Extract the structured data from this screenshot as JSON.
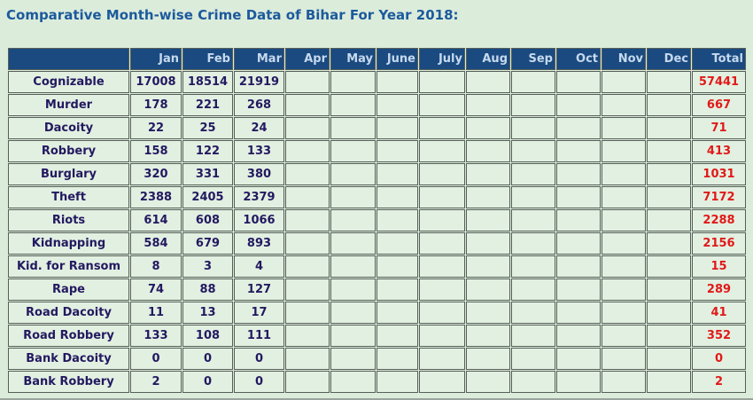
{
  "title": "Comparative Month-wise Crime Data of Bihar For Year 2018:",
  "table": {
    "label_header": "",
    "month_headers": [
      "Jan",
      "Feb",
      "Mar",
      "Apr",
      "May",
      "June",
      "July",
      "Aug",
      "Sep",
      "Oct",
      "Nov",
      "Dec"
    ],
    "total_header": "Total",
    "rows": [
      {
        "label": "Cognizable",
        "values": [
          17008,
          18514,
          21919,
          null,
          null,
          null,
          null,
          null,
          null,
          null,
          null,
          null
        ],
        "total": 57441
      },
      {
        "label": "Murder",
        "values": [
          178,
          221,
          268,
          null,
          null,
          null,
          null,
          null,
          null,
          null,
          null,
          null
        ],
        "total": 667
      },
      {
        "label": "Dacoity",
        "values": [
          22,
          25,
          24,
          null,
          null,
          null,
          null,
          null,
          null,
          null,
          null,
          null
        ],
        "total": 71
      },
      {
        "label": "Robbery",
        "values": [
          158,
          122,
          133,
          null,
          null,
          null,
          null,
          null,
          null,
          null,
          null,
          null
        ],
        "total": 413
      },
      {
        "label": "Burglary",
        "values": [
          320,
          331,
          380,
          null,
          null,
          null,
          null,
          null,
          null,
          null,
          null,
          null
        ],
        "total": 1031
      },
      {
        "label": "Theft",
        "values": [
          2388,
          2405,
          2379,
          null,
          null,
          null,
          null,
          null,
          null,
          null,
          null,
          null
        ],
        "total": 7172
      },
      {
        "label": "Riots",
        "values": [
          614,
          608,
          1066,
          null,
          null,
          null,
          null,
          null,
          null,
          null,
          null,
          null
        ],
        "total": 2288
      },
      {
        "label": "Kidnapping",
        "values": [
          584,
          679,
          893,
          null,
          null,
          null,
          null,
          null,
          null,
          null,
          null,
          null
        ],
        "total": 2156
      },
      {
        "label": "Kid. for Ransom",
        "values": [
          8,
          3,
          4,
          null,
          null,
          null,
          null,
          null,
          null,
          null,
          null,
          null
        ],
        "total": 15
      },
      {
        "label": "Rape",
        "values": [
          74,
          88,
          127,
          null,
          null,
          null,
          null,
          null,
          null,
          null,
          null,
          null
        ],
        "total": 289
      },
      {
        "label": "Road Dacoity",
        "values": [
          11,
          13,
          17,
          null,
          null,
          null,
          null,
          null,
          null,
          null,
          null,
          null
        ],
        "total": 41
      },
      {
        "label": "Road Robbery",
        "values": [
          133,
          108,
          111,
          null,
          null,
          null,
          null,
          null,
          null,
          null,
          null,
          null
        ],
        "total": 352
      },
      {
        "label": "Bank Dacoity",
        "values": [
          0,
          0,
          0,
          null,
          null,
          null,
          null,
          null,
          null,
          null,
          null,
          null
        ],
        "total": 0
      },
      {
        "label": "Bank Robbery",
        "values": [
          2,
          0,
          0,
          null,
          null,
          null,
          null,
          null,
          null,
          null,
          null,
          null
        ],
        "total": 2
      }
    ]
  },
  "colors": {
    "page_bg": "#dcecdb",
    "title_text": "#1c5a9c",
    "header_bg": "#1a4a80",
    "header_text": "#c6d9ee",
    "cell_bg": "#e2f0e1",
    "value_text": "#231960",
    "total_text": "#e11919",
    "border_color": "#565f58"
  }
}
